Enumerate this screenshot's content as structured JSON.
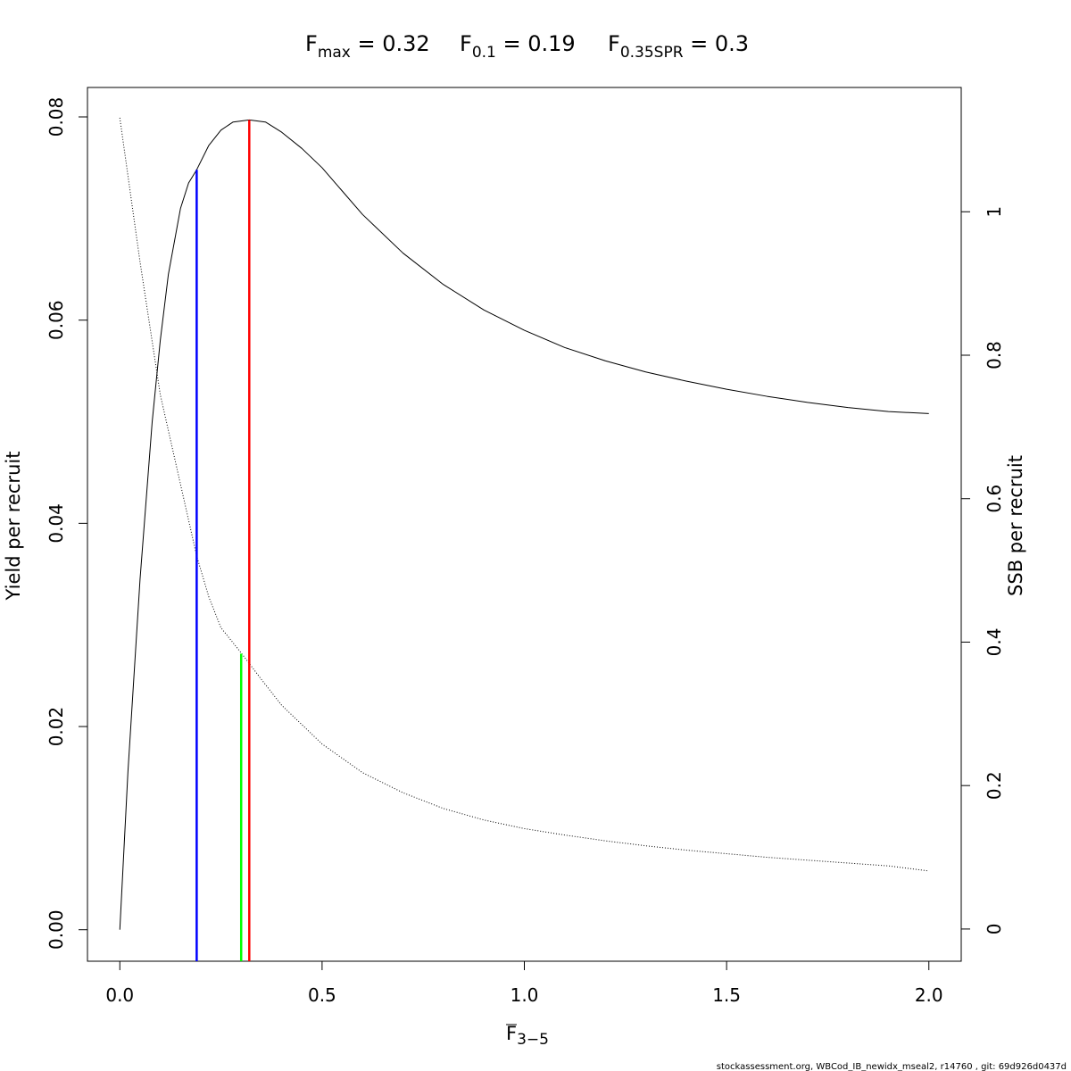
{
  "chart_data": {
    "type": "line",
    "title_terms": [
      {
        "sym": "F",
        "sub": "max",
        "rest": " = 0.32"
      },
      {
        "sym": "F",
        "sub": "0.1",
        "rest": " = 0.19"
      },
      {
        "sym": "F",
        "sub": "0.35SPR",
        "rest": " = 0.3"
      }
    ],
    "xlabel": {
      "sym": "F",
      "sub": "3−5"
    },
    "ylabel_left": "Yield per recruit",
    "ylabel_right": "SSB per recruit",
    "xlim": [
      -0.08,
      2.08
    ],
    "ylim_left": [
      -0.0031,
      0.0829
    ],
    "ylim_right": [
      -0.0449,
      1.1733
    ],
    "x_ticks": [
      0,
      0.5,
      1,
      1.5,
      2
    ],
    "x_tick_labels": [
      "0.0",
      "0.5",
      "1.0",
      "1.5",
      "2.0"
    ],
    "y_left_ticks": [
      0,
      0.02,
      0.04,
      0.06,
      0.08
    ],
    "y_left_tick_labels": [
      "0.00",
      "0.02",
      "0.04",
      "0.06",
      "0.08"
    ],
    "y_right_ticks": [
      0,
      0.2,
      0.4,
      0.6,
      0.8,
      1
    ],
    "y_right_tick_labels": [
      "0",
      "0.2",
      "0.4",
      "0.6",
      "0.8",
      "1"
    ],
    "grid": false,
    "legend": "none",
    "series": [
      {
        "axis": "left",
        "style": "solid",
        "color": "#000000",
        "x": [
          0,
          0.02,
          0.05,
          0.08,
          0.1,
          0.12,
          0.15,
          0.17,
          0.19,
          0.22,
          0.25,
          0.28,
          0.32,
          0.36,
          0.4,
          0.45,
          0.5,
          0.6,
          0.7,
          0.8,
          0.9,
          1.0,
          1.1,
          1.2,
          1.3,
          1.4,
          1.5,
          1.6,
          1.7,
          1.8,
          1.9,
          2.0
        ],
        "y": [
          0,
          0.0155,
          0.0345,
          0.05,
          0.058,
          0.0645,
          0.071,
          0.0735,
          0.0748,
          0.0772,
          0.0787,
          0.0795,
          0.0797,
          0.0795,
          0.0785,
          0.0769,
          0.075,
          0.0704,
          0.0666,
          0.0635,
          0.061,
          0.059,
          0.0573,
          0.056,
          0.0549,
          0.054,
          0.0532,
          0.0525,
          0.0519,
          0.0514,
          0.051,
          0.0508
        ]
      },
      {
        "axis": "right",
        "style": "dotted",
        "color": "#000000",
        "x": [
          0,
          0.05,
          0.1,
          0.15,
          0.19,
          0.22,
          0.25,
          0.3,
          0.35,
          0.4,
          0.5,
          0.6,
          0.7,
          0.8,
          0.9,
          1.0,
          1.1,
          1.2,
          1.3,
          1.4,
          1.5,
          1.6,
          1.7,
          1.8,
          1.9,
          2.0
        ],
        "y": [
          1.131,
          0.93,
          0.745,
          0.62,
          0.52,
          0.463,
          0.42,
          0.385,
          0.348,
          0.312,
          0.258,
          0.218,
          0.19,
          0.168,
          0.152,
          0.14,
          0.131,
          0.123,
          0.116,
          0.11,
          0.105,
          0.1,
          0.096,
          0.092,
          0.088,
          0.081
        ]
      }
    ],
    "reference_lines": [
      {
        "name": "Fmax",
        "x": 0.32,
        "y_top": 0.0797,
        "axis": "left",
        "color": "#ff0000"
      },
      {
        "name": "F0.1",
        "x": 0.19,
        "y_top": 0.0748,
        "axis": "left",
        "color": "#0000ff"
      },
      {
        "name": "F0.35SPR",
        "x": 0.3,
        "y_top": 0.384,
        "axis": "right",
        "color": "#00ff00"
      }
    ]
  },
  "footer": "stockassessment.org, WBCod_IB_newidx_mseal2, r14760 , git: 69d926d0437d"
}
